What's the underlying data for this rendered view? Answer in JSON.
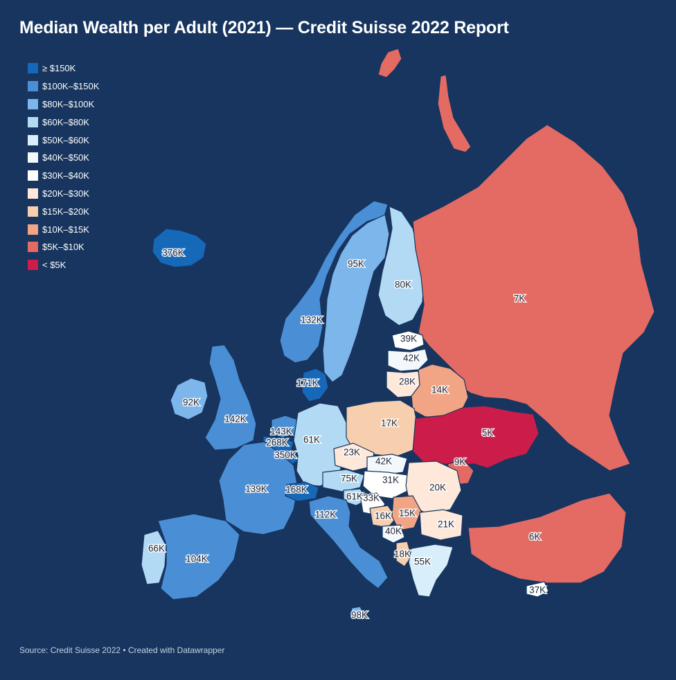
{
  "title": "Median Wealth per Adult (2021) — Credit Suisse 2022 Report",
  "source": "Source: Credit Suisse 2022 • Created with Datawrapper",
  "legend": [
    {
      "label": "≥ $150K",
      "color": "#1668b8"
    },
    {
      "label": "$100K–$150K",
      "color": "#4a8fd6"
    },
    {
      "label": "$80K–$100K",
      "color": "#7db6ea"
    },
    {
      "label": "$60K–$80K",
      "color": "#b3daf5"
    },
    {
      "label": "$50K–$60K",
      "color": "#d8eefa"
    },
    {
      "label": "$40K–$50K",
      "color": "#f3f8fc"
    },
    {
      "label": "$30K–$40K",
      "color": "#ffffff"
    },
    {
      "label": "$20K–$30K",
      "color": "#fde8da"
    },
    {
      "label": "$15K–$20K",
      "color": "#f8cfae"
    },
    {
      "label": "$10K–$15K",
      "color": "#f1a584"
    },
    {
      "label": "$5K–$10K",
      "color": "#e46a64"
    },
    {
      "label": "< $5K",
      "color": "#cc1d4a"
    }
  ],
  "countries": [
    {
      "id": "iceland",
      "label": "376K",
      "color": "#1668b8"
    },
    {
      "id": "norway",
      "label": "132K",
      "color": "#4a8fd6"
    },
    {
      "id": "sweden",
      "label": "95K",
      "color": "#7db6ea"
    },
    {
      "id": "finland",
      "label": "80K",
      "color": "#b3daf5"
    },
    {
      "id": "russia",
      "label": "7K",
      "color": "#e46a64"
    },
    {
      "id": "estonia",
      "label": "39K",
      "color": "#ffffff"
    },
    {
      "id": "latvia",
      "label": "42K",
      "color": "#f3f8fc"
    },
    {
      "id": "lithuania",
      "label": "28K",
      "color": "#fde8da"
    },
    {
      "id": "belarus",
      "label": "14K",
      "color": "#f1a584"
    },
    {
      "id": "denmark",
      "label": "171K",
      "color": "#1668b8"
    },
    {
      "id": "ireland",
      "label": "92K",
      "color": "#7db6ea"
    },
    {
      "id": "uk",
      "label": "142K",
      "color": "#4a8fd6"
    },
    {
      "id": "netherlands",
      "label": "143K",
      "color": "#4a8fd6"
    },
    {
      "id": "belgium",
      "label": "268K",
      "color": "#1668b8"
    },
    {
      "id": "luxembourg",
      "label": "350K",
      "color": "#1668b8"
    },
    {
      "id": "germany",
      "label": "61K",
      "color": "#b3daf5"
    },
    {
      "id": "poland",
      "label": "17K",
      "color": "#f8cfae"
    },
    {
      "id": "czechia",
      "label": "23K",
      "color": "#fde8da"
    },
    {
      "id": "slovakia",
      "label": "42K",
      "color": "#f3f8fc"
    },
    {
      "id": "ukraine",
      "label": "5K",
      "color": "#cc1d4a"
    },
    {
      "id": "moldova",
      "label": "9K",
      "color": "#e46a64"
    },
    {
      "id": "france",
      "label": "139K",
      "color": "#4a8fd6"
    },
    {
      "id": "switzerland",
      "label": "168K",
      "color": "#1668b8"
    },
    {
      "id": "austria",
      "label": "75K",
      "color": "#b3daf5"
    },
    {
      "id": "hungary",
      "label": "31K",
      "color": "#ffffff"
    },
    {
      "id": "romania",
      "label": "20K",
      "color": "#fde8da"
    },
    {
      "id": "slovenia",
      "label": "61K",
      "color": "#b3daf5"
    },
    {
      "id": "croatia",
      "label": "33K",
      "color": "#ffffff"
    },
    {
      "id": "bosnia",
      "label": "16K",
      "color": "#f8cfae"
    },
    {
      "id": "serbia",
      "label": "15K",
      "color": "#f1a584"
    },
    {
      "id": "montenegro",
      "label": "40K",
      "color": "#f3f8fc"
    },
    {
      "id": "bulgaria",
      "label": "21K",
      "color": "#fde8da"
    },
    {
      "id": "albania",
      "label": "18K",
      "color": "#f8cfae"
    },
    {
      "id": "greece",
      "label": "55K",
      "color": "#d8eefa"
    },
    {
      "id": "italy",
      "label": "112K",
      "color": "#4a8fd6"
    },
    {
      "id": "malta",
      "label": "98K",
      "color": "#7db6ea"
    },
    {
      "id": "portugal",
      "label": "66K",
      "color": "#b3daf5"
    },
    {
      "id": "spain",
      "label": "104K",
      "color": "#4a8fd6"
    },
    {
      "id": "turkey",
      "label": "6K",
      "color": "#e46a64"
    },
    {
      "id": "cyprus",
      "label": "37K",
      "color": "#ffffff"
    }
  ]
}
